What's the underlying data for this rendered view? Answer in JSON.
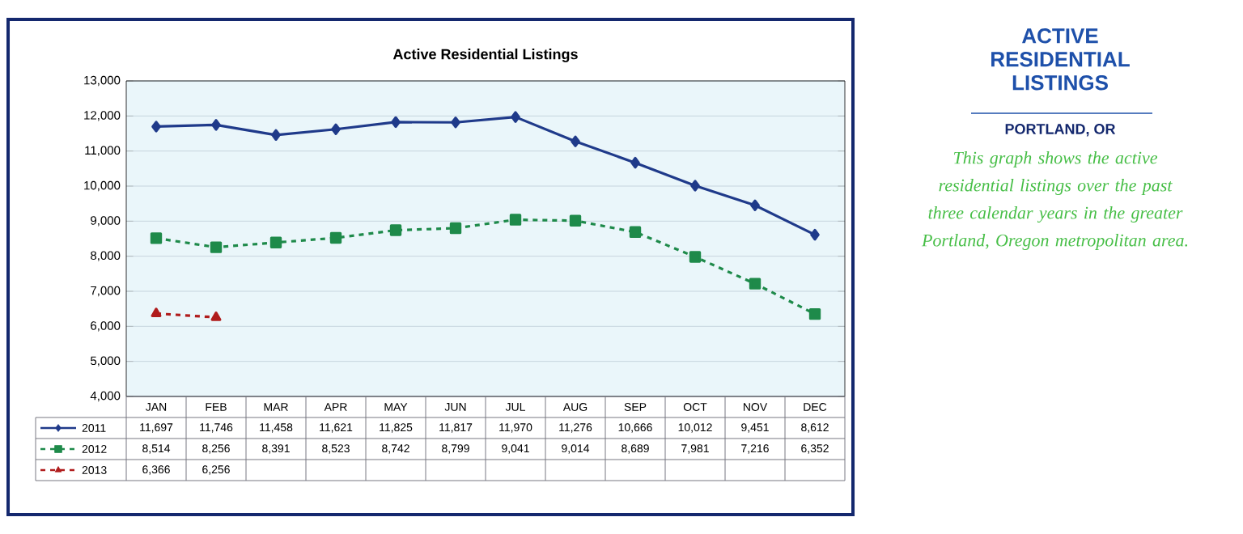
{
  "chart_data": {
    "type": "line",
    "title": "Active Residential Listings",
    "categories": [
      "JAN",
      "FEB",
      "MAR",
      "APR",
      "MAY",
      "JUN",
      "JUL",
      "AUG",
      "SEP",
      "OCT",
      "NOV",
      "DEC"
    ],
    "series": [
      {
        "name": "2011",
        "color": "#1f3a8a",
        "marker": "diamond",
        "line_style": "solid",
        "values": [
          11697,
          11746,
          11458,
          11621,
          11825,
          11817,
          11970,
          11276,
          10666,
          10012,
          9451,
          8612
        ],
        "value_labels": [
          "11,697",
          "11,746",
          "11,458",
          "11,621",
          "11,825",
          "11,817",
          "11,970",
          "11,276",
          "10,666",
          "10,012",
          "9,451",
          "8,612"
        ]
      },
      {
        "name": "2012",
        "color": "#1e8a4a",
        "marker": "square",
        "line_style": "dashed",
        "values": [
          8514,
          8256,
          8391,
          8523,
          8742,
          8799,
          9041,
          9014,
          8689,
          7981,
          7216,
          6352
        ],
        "value_labels": [
          "8,514",
          "8,256",
          "8,391",
          "8,523",
          "8,742",
          "8,799",
          "9,041",
          "9,014",
          "8,689",
          "7,981",
          "7,216",
          "6,352"
        ]
      },
      {
        "name": "2013",
        "color": "#b01c1c",
        "marker": "triangle",
        "line_style": "dashed",
        "values": [
          6366,
          6256,
          null,
          null,
          null,
          null,
          null,
          null,
          null,
          null,
          null,
          null
        ],
        "value_labels": [
          "6,366",
          "6,256",
          null,
          null,
          null,
          null,
          null,
          null,
          null,
          null,
          null,
          null
        ]
      }
    ],
    "ylim": [
      4000,
      13000
    ],
    "yticks": [
      {
        "value": 4000,
        "label": "4,000"
      },
      {
        "value": 5000,
        "label": "5,000"
      },
      {
        "value": 6000,
        "label": "6,000"
      },
      {
        "value": 7000,
        "label": "7,000"
      },
      {
        "value": 8000,
        "label": "8,000"
      },
      {
        "value": 9000,
        "label": "9,000"
      },
      {
        "value": 10000,
        "label": "10,000"
      },
      {
        "value": 11000,
        "label": "11,000"
      },
      {
        "value": 12000,
        "label": "12,000"
      },
      {
        "value": 13000,
        "label": "13,000"
      }
    ],
    "grid": "y",
    "legend": "bottom",
    "annotations": [
      "ACTIVE RESIDENTIAL LISTINGS",
      "PORTLAND, OR",
      "This graph shows the active residential listings over the past three calendar years in the greater Portland, Oregon metropolitan area."
    ]
  }
}
